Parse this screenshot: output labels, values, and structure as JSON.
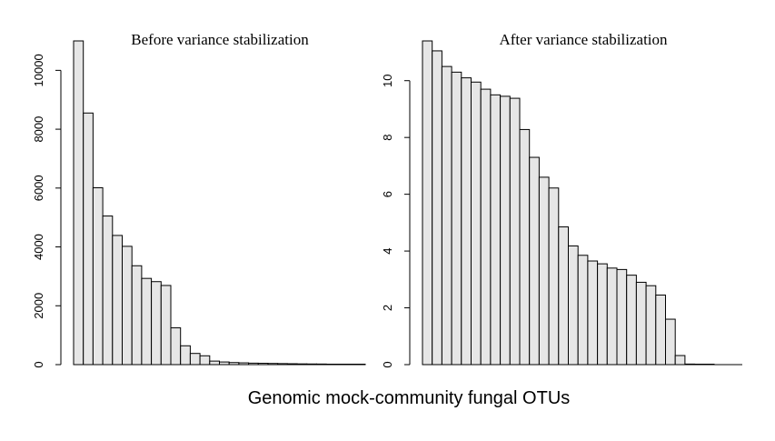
{
  "xlabel": "Genomic mock-community fungal OTUs",
  "colors": {
    "bar_fill": "#e6e6e6",
    "bar_stroke": "#000000"
  },
  "chart_data": [
    {
      "type": "bar",
      "title": "Before variance stabilization",
      "xlabel": "",
      "ylabel": "",
      "ylim": [
        0,
        11000
      ],
      "yticks": [
        0,
        2000,
        4000,
        6000,
        8000,
        10000
      ],
      "ytick_labels": [
        "0",
        "2000",
        "4000",
        "6000",
        "8000",
        "10000"
      ],
      "grid": false,
      "values": [
        11000,
        8550,
        6010,
        5050,
        4390,
        4020,
        3360,
        2930,
        2820,
        2690,
        1250,
        640,
        380,
        300,
        120,
        90,
        70,
        60,
        50,
        45,
        40,
        35,
        30,
        25,
        22,
        20,
        15,
        12,
        10,
        8
      ]
    },
    {
      "type": "bar",
      "title": "After variance stabilization",
      "xlabel": "",
      "ylabel": "",
      "ylim": [
        0,
        11.4
      ],
      "yticks": [
        0,
        2,
        4,
        6,
        8,
        10
      ],
      "ytick_labels": [
        "0",
        "2",
        "4",
        "6",
        "8",
        "10"
      ],
      "grid": false,
      "values": [
        11.4,
        11.05,
        10.5,
        10.3,
        10.1,
        9.95,
        9.7,
        9.5,
        9.45,
        9.38,
        8.28,
        7.3,
        6.6,
        6.22,
        4.85,
        4.18,
        3.85,
        3.65,
        3.55,
        3.4,
        3.35,
        3.15,
        2.9,
        2.78,
        2.45,
        1.6,
        0.32,
        0.02,
        0.01,
        0.01
      ]
    }
  ]
}
